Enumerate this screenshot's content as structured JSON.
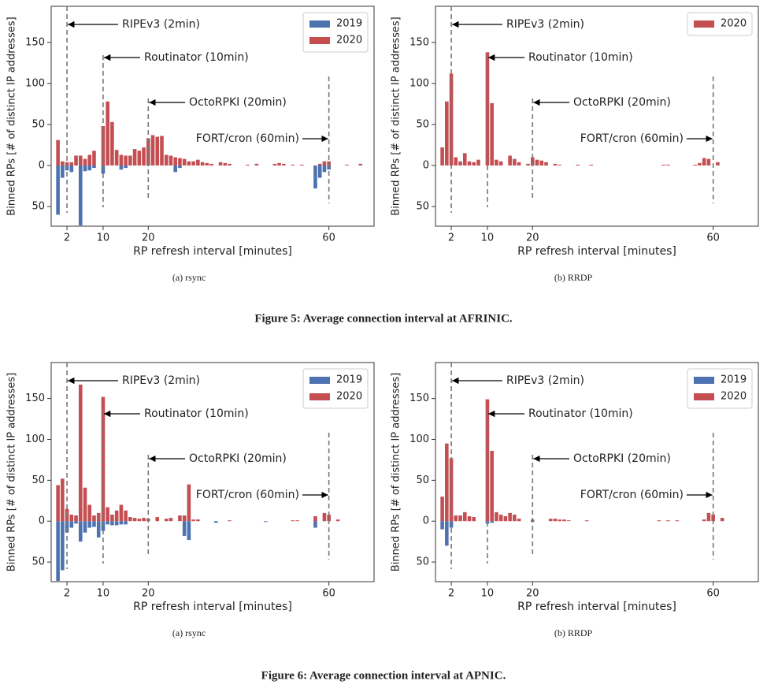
{
  "figure_captions": [
    "Figure 5: Average connection interval at AFRINIC.",
    "Figure 6: Average connection interval at APNIC."
  ],
  "chart_data": [
    {
      "type": "bar",
      "caption": "(a) rsync",
      "x_label": "RP refresh interval [minutes]",
      "y_label": "Binned RPs [# of distinct IP addresses]",
      "xlim": [
        -1.5,
        70
      ],
      "ylim": [
        -74,
        194
      ],
      "xticks": [
        2,
        10,
        20,
        60
      ],
      "yticks": [
        {
          "value": -50,
          "label": "50"
        },
        0,
        50,
        100,
        150
      ],
      "legend": "upper right",
      "x": [
        0,
        1,
        2,
        3,
        4,
        5,
        6,
        7,
        8,
        10,
        11,
        12,
        13,
        14,
        15,
        16,
        17,
        18,
        19,
        20,
        21,
        22,
        23,
        24,
        25,
        26,
        27,
        28,
        29,
        30,
        31,
        32,
        33,
        34,
        36,
        37,
        38,
        42,
        44,
        48,
        49,
        50,
        52,
        54,
        57,
        58,
        59,
        60,
        64,
        67
      ],
      "series": [
        {
          "name": "2019",
          "color": "#4c72b0",
          "values": [
            -60,
            -15,
            -6,
            -8,
            null,
            -73,
            -7,
            -6,
            -3,
            -10,
            null,
            null,
            null,
            -5,
            -3,
            null,
            null,
            null,
            null,
            null,
            null,
            null,
            null,
            null,
            null,
            -8,
            -3,
            null,
            null,
            null,
            null,
            null,
            null,
            null,
            null,
            null,
            null,
            null,
            null,
            null,
            null,
            null,
            null,
            null,
            -28,
            -15,
            -8,
            -5,
            null,
            null
          ]
        },
        {
          "name": "2020",
          "color": "#c44e52",
          "values": [
            31,
            5,
            4,
            4,
            12,
            12,
            8,
            13,
            18,
            48,
            78,
            53,
            19,
            13,
            12,
            12,
            20,
            18,
            22,
            33,
            37,
            35,
            36,
            13,
            12,
            10,
            9,
            8,
            5,
            5,
            7,
            4,
            3,
            2,
            4,
            3,
            2,
            1,
            2,
            2,
            3,
            2,
            1,
            1,
            null,
            2,
            5,
            5,
            1,
            2
          ]
        }
      ],
      "annotations": [
        {
          "text": "RIPEv3 (2min)",
          "x": 2
        },
        {
          "text": "Routinator (10min)",
          "x": 10
        },
        {
          "text": "OctoRPKI (20min)",
          "x": 20
        },
        {
          "text": "FORT/cron (60min)",
          "x": 60
        }
      ]
    },
    {
      "type": "bar",
      "caption": "(b) RRDP",
      "x_label": "RP refresh interval [minutes]",
      "y_label": "Binned RPs [# of distinct IP addresses]",
      "xlim": [
        -1.5,
        70
      ],
      "ylim": [
        -74,
        194
      ],
      "xticks": [
        2,
        10,
        20,
        60
      ],
      "yticks": [
        {
          "value": -50,
          "label": "50"
        },
        0,
        50,
        100,
        150
      ],
      "legend": "upper right",
      "x": [
        0,
        1,
        2,
        3,
        4,
        5,
        6,
        7,
        8,
        10,
        11,
        12,
        13,
        15,
        16,
        17,
        19,
        20,
        21,
        22,
        23,
        25,
        26,
        30,
        33,
        49,
        50,
        56,
        57,
        58,
        59,
        61
      ],
      "series": [
        {
          "name": "2020",
          "color": "#c44e52",
          "values": [
            22,
            78,
            112,
            10,
            5,
            15,
            5,
            4,
            7,
            138,
            76,
            7,
            5,
            12,
            8,
            4,
            2,
            10,
            7,
            6,
            4,
            2,
            1,
            1,
            1,
            1,
            1,
            1,
            3,
            9,
            8,
            4
          ]
        }
      ],
      "annotations": [
        {
          "text": "RIPEv3 (2min)",
          "x": 2
        },
        {
          "text": "Routinator (10min)",
          "x": 10
        },
        {
          "text": "OctoRPKI (20min)",
          "x": 20
        },
        {
          "text": "FORT/cron (60min)",
          "x": 60
        }
      ]
    },
    {
      "type": "bar",
      "caption": "(a) rsync",
      "x_label": "RP refresh interval [minutes]",
      "y_label": "Binned RPs [# of distinct IP addresses]",
      "xlim": [
        -1.5,
        70
      ],
      "ylim": [
        -74,
        194
      ],
      "xticks": [
        2,
        10,
        20,
        60
      ],
      "yticks": [
        {
          "value": -50,
          "label": "50"
        },
        0,
        50,
        100,
        150
      ],
      "legend": "upper right",
      "x": [
        0,
        1,
        2,
        3,
        4,
        5,
        6,
        7,
        8,
        9,
        10,
        11,
        12,
        13,
        14,
        15,
        16,
        17,
        18,
        19,
        20,
        22,
        24,
        25,
        27,
        28,
        29,
        30,
        31,
        35,
        38,
        46,
        52,
        53,
        57,
        59,
        60,
        62
      ],
      "series": [
        {
          "name": "2019",
          "color": "#4c72b0",
          "values": [
            -73,
            -60,
            -14,
            -8,
            -3,
            -25,
            -14,
            -8,
            -7,
            -20,
            -12,
            -4,
            -5,
            -5,
            -4,
            -4,
            null,
            null,
            null,
            null,
            null,
            null,
            null,
            null,
            null,
            -18,
            -23,
            null,
            null,
            -2,
            null,
            -1,
            null,
            null,
            -8,
            null,
            null,
            null
          ]
        },
        {
          "name": "2020",
          "color": "#c44e52",
          "values": [
            44,
            52,
            15,
            8,
            7,
            167,
            41,
            20,
            7,
            10,
            152,
            17,
            8,
            13,
            20,
            13,
            5,
            4,
            3,
            4,
            3,
            5,
            3,
            4,
            7,
            7,
            45,
            2,
            2,
            null,
            1,
            null,
            1,
            1,
            6,
            10,
            8,
            2
          ]
        }
      ],
      "annotations": [
        {
          "text": "RIPEv3 (2min)",
          "x": 2
        },
        {
          "text": "Routinator (10min)",
          "x": 10
        },
        {
          "text": "OctoRPKI (20min)",
          "x": 20
        },
        {
          "text": "FORT/cron (60min)",
          "x": 60
        }
      ]
    },
    {
      "type": "bar",
      "caption": "(b) RRDP",
      "x_label": "RP refresh interval [minutes]",
      "y_label": "Binned RPs [# of distinct IP addresses]",
      "xlim": [
        -1.5,
        70
      ],
      "ylim": [
        -74,
        194
      ],
      "xticks": [
        2,
        10,
        20,
        60
      ],
      "yticks": [
        {
          "value": -50,
          "label": "50"
        },
        0,
        50,
        100,
        150
      ],
      "legend": "upper right",
      "x": [
        0,
        1,
        2,
        3,
        4,
        5,
        6,
        7,
        10,
        11,
        12,
        13,
        14,
        15,
        16,
        17,
        20,
        24,
        25,
        26,
        27,
        28,
        32,
        48,
        50,
        52,
        58,
        59,
        60,
        62
      ],
      "series": [
        {
          "name": "2019",
          "color": "#4c72b0",
          "values": [
            -10,
            -30,
            -8,
            null,
            null,
            null,
            null,
            null,
            -3,
            -2,
            null,
            null,
            null,
            null,
            null,
            null,
            -1,
            null,
            null,
            null,
            null,
            null,
            null,
            null,
            null,
            null,
            null,
            null,
            null,
            null
          ]
        },
        {
          "name": "2020",
          "color": "#c44e52",
          "values": [
            30,
            95,
            77,
            7,
            7,
            11,
            6,
            5,
            149,
            86,
            11,
            8,
            6,
            10,
            8,
            3,
            2,
            3,
            3,
            2,
            2,
            1,
            1,
            1,
            1,
            1,
            2,
            10,
            8,
            4
          ]
        }
      ],
      "annotations": [
        {
          "text": "RIPEv3 (2min)",
          "x": 2
        },
        {
          "text": "Routinator (10min)",
          "x": 10
        },
        {
          "text": "OctoRPKI (20min)",
          "x": 20
        },
        {
          "text": "FORT/cron (60min)",
          "x": 60
        }
      ]
    }
  ]
}
